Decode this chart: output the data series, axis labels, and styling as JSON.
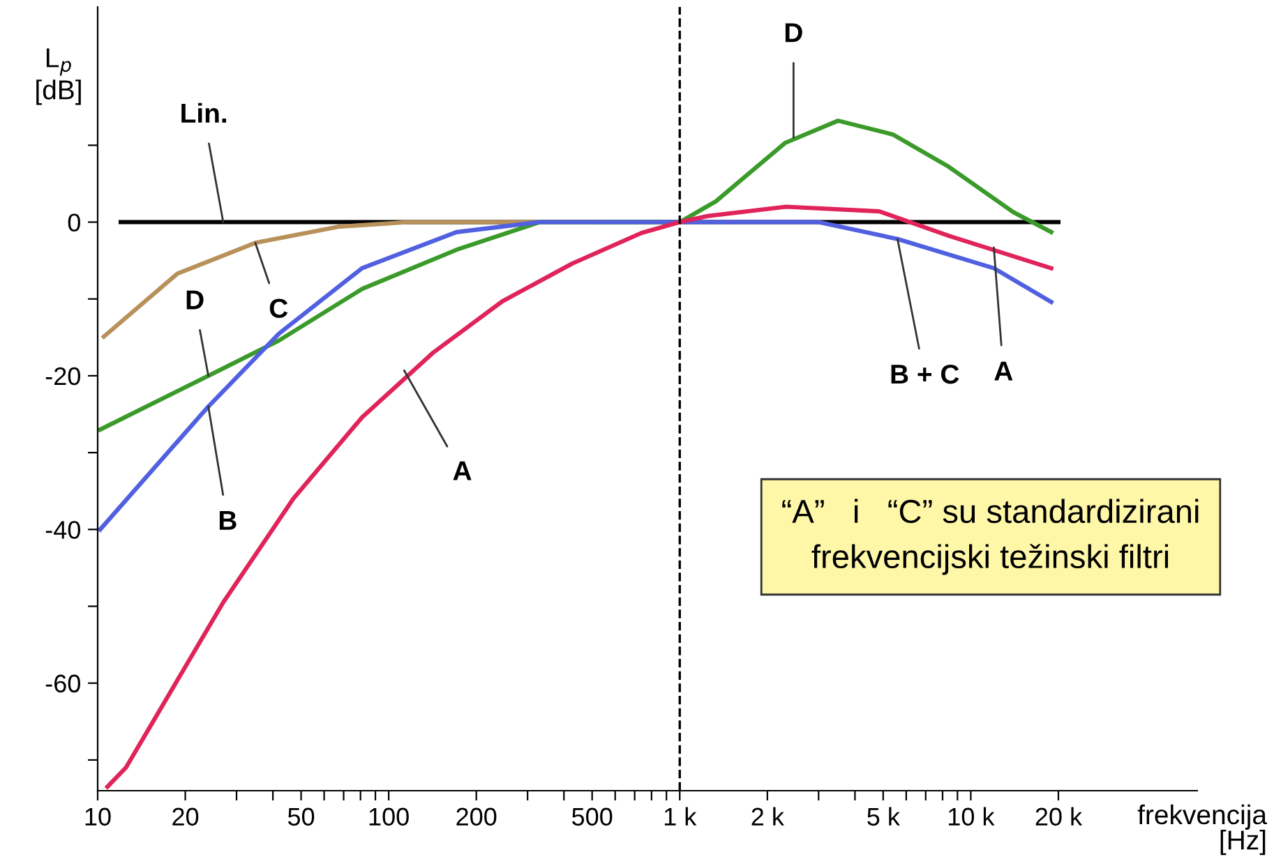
{
  "chart_data": {
    "type": "line",
    "xlabel": "frekvencija\n[Hz]",
    "ylabel": "L$_{p}$\n[dB]",
    "xlim": [
      10,
      60000
    ],
    "ylim": [
      -74,
      28
    ],
    "xticks": [
      10,
      20,
      {
        "value": 30,
        "label": null
      },
      {
        "value": 40,
        "label": null
      },
      50,
      {
        "value": 60,
        "label": null
      },
      {
        "value": 70,
        "label": null
      },
      {
        "value": 80,
        "label": null
      },
      {
        "value": 90,
        "label": null
      },
      100,
      200,
      {
        "value": 300,
        "label": null
      },
      {
        "value": 400,
        "label": null
      },
      500,
      {
        "value": 600,
        "label": null
      },
      {
        "value": 700,
        "label": null
      },
      {
        "value": 800,
        "label": null
      },
      {
        "value": 900,
        "label": null
      },
      {
        "value": 1000,
        "label": "1 k"
      },
      {
        "value": 2000,
        "label": "2 k"
      },
      {
        "value": 3000,
        "label": null
      },
      {
        "value": 4000,
        "label": null
      },
      {
        "value": 5000,
        "label": "5 k"
      },
      {
        "value": 6000,
        "label": null
      },
      {
        "value": 7000,
        "label": null
      },
      {
        "value": 8000,
        "label": null
      },
      {
        "value": 9000,
        "label": null
      },
      {
        "value": 10000,
        "label": "10 k"
      },
      {
        "value": 20000,
        "label": "20 k"
      }
    ],
    "yticks": [
      {
        "value": -70,
        "label": null
      },
      -60,
      {
        "value": -50,
        "label": null
      },
      -40,
      {
        "value": -30,
        "label": null
      },
      -20,
      {
        "value": -10,
        "label": null
      },
      0,
      {
        "value": 10,
        "label": null
      }
    ],
    "log": "x",
    "grid": false,
    "marker": "none",
    "line_style": "solid",
    "series": [
      {
        "color": "#000000",
        "x": [
          12,
          100,
          1000,
          20000
        ],
        "values": [
          0,
          0,
          0,
          0
        ]
      },
      {
        "color": "#b8915a",
        "x": [
          10.5,
          18.8,
          34.8,
          67,
          117,
          500
        ],
        "values": [
          -14.9,
          -6.7,
          -2.7,
          -0.6,
          0,
          0
        ]
      },
      {
        "color": "#3a9a2a",
        "x": [
          10.2,
          24,
          42,
          81,
          171,
          330,
          1000,
          1330,
          2300,
          3500,
          5400,
          8400,
          14000,
          18900
        ],
        "values": [
          -27,
          -20,
          -15.4,
          -8.7,
          -3.6,
          0,
          0,
          2.7,
          10.3,
          13.2,
          11.4,
          7.2,
          1.3,
          -1.3
        ]
      },
      {
        "color": "#5060e0",
        "x": [
          10.2,
          24,
          42,
          81,
          171,
          330,
          1000,
          3000,
          5600,
          12000,
          18900
        ],
        "values": [
          -40,
          -24,
          -14.5,
          -6,
          -1.3,
          0,
          0,
          0,
          -2.2,
          -6,
          -10.4
        ]
      },
      {
        "color": "#e0245a",
        "x": [
          10.8,
          12.5,
          15.5,
          27,
          47,
          81,
          142,
          246,
          427,
          740,
          1000,
          1250,
          2320,
          4850,
          8430,
          18900
        ],
        "values": [
          -73.5,
          -71,
          -65,
          -49.5,
          -36,
          -25.4,
          -17,
          -10.3,
          -5.4,
          -1.4,
          0,
          0.8,
          2,
          1.4,
          -1.8,
          -6
        ]
      }
    ],
    "ref_lines": [
      {
        "axis": "x",
        "value": 1000,
        "line_style": "dashed",
        "color": "#000000"
      }
    ],
    "annotations": [
      {
        "text": "Lin.",
        "x": 27,
        "y": 0
      },
      {
        "text": "C",
        "x": 34.8,
        "y": -2.7
      },
      {
        "text": "D",
        "x": 24,
        "y": -20
      },
      {
        "text": "B",
        "x": 24,
        "y": -24
      },
      {
        "text": "A",
        "x": 113,
        "y": -19.3
      },
      {
        "text": "D",
        "x": 2460,
        "y": 11
      },
      {
        "text": "B + C",
        "x": 5600,
        "y": -2.2
      },
      {
        "text": "A",
        "x": 12000,
        "y": -3.3
      },
      "“A”   i   “C” su standardizirani\nfrekvencijski težinski filtri"
    ]
  }
}
